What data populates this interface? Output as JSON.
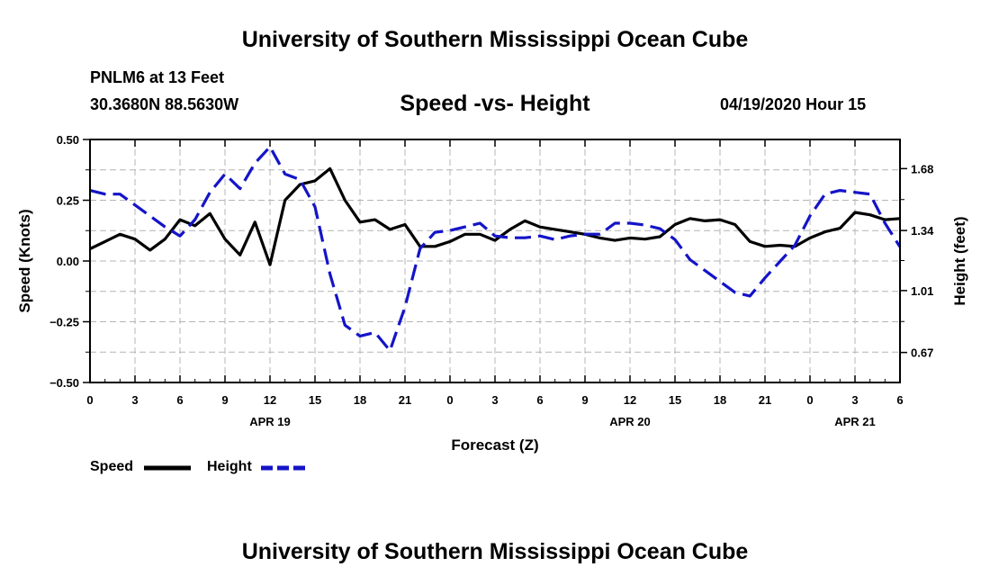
{
  "page": {
    "title_top": "University of Southern Mississippi Ocean Cube",
    "title_bottom": "University of Southern Mississippi Ocean Cube",
    "station": "PNLM6 at 13 Feet",
    "coords": "30.3680N 88.5630W",
    "date_hour": "04/19/2020 Hour 15"
  },
  "legend": {
    "speed_label": "Speed",
    "height_label": "Height"
  },
  "colors": {
    "speed": "#000000",
    "height": "#1414c8",
    "grid": "#b4b4b4"
  },
  "chart_data": {
    "type": "line",
    "title": "Speed -vs- Height",
    "xlabel": "Forecast (Z)",
    "ylabel_left": "Speed (Knots)",
    "ylabel_right": "Height (feet)",
    "xlim": [
      0,
      54
    ],
    "x_ticks": [
      0,
      3,
      6,
      9,
      12,
      15,
      18,
      21,
      24,
      27,
      30,
      33,
      36,
      39,
      42,
      45,
      48,
      51,
      54
    ],
    "x_tick_labels": [
      "0",
      "3",
      "6",
      "9",
      "12",
      "15",
      "18",
      "21",
      "0",
      "3",
      "6",
      "9",
      "12",
      "15",
      "18",
      "21",
      "0",
      "3",
      "6"
    ],
    "day_labels": [
      {
        "x": 12,
        "label": "APR 19"
      },
      {
        "x": 36,
        "label": "APR 20"
      },
      {
        "x": 51,
        "label": "APR 21"
      }
    ],
    "y_left_lim": [
      -0.5,
      0.5
    ],
    "y_left_ticks": [
      -0.5,
      -0.25,
      0.0,
      0.25,
      0.5
    ],
    "y_left_tick_labels": [
      "−0.50",
      "−0.25",
      "0.00",
      "0.25",
      "0.50"
    ],
    "y_right_lim": [
      0.505,
      1.84
    ],
    "y_right_ticks": [
      0.67,
      1.01,
      1.34,
      1.68
    ],
    "y_right_tick_labels": [
      "0.67",
      "1.01",
      "1.34",
      "1.68"
    ],
    "grid": true,
    "series": [
      {
        "name": "Speed",
        "axis": "left",
        "style": "solid",
        "x": [
          0,
          1,
          2,
          3,
          4,
          5,
          6,
          7,
          8,
          9,
          10,
          11,
          12,
          13,
          14,
          15,
          16,
          17,
          18,
          19,
          20,
          21,
          22,
          23,
          24,
          25,
          26,
          27,
          28,
          29,
          30,
          31,
          32,
          33,
          34,
          35,
          36,
          37,
          38,
          39,
          40,
          41,
          42,
          43,
          44,
          45,
          46,
          47,
          48,
          49,
          50,
          51,
          52,
          53,
          54
        ],
        "values": [
          0.05,
          0.08,
          0.11,
          0.09,
          0.045,
          0.09,
          0.17,
          0.145,
          0.195,
          0.09,
          0.025,
          0.16,
          -0.015,
          0.25,
          0.315,
          0.33,
          0.38,
          0.25,
          0.16,
          0.17,
          0.13,
          0.15,
          0.06,
          0.06,
          0.08,
          0.11,
          0.11,
          0.085,
          0.13,
          0.165,
          0.14,
          0.13,
          0.12,
          0.11,
          0.095,
          0.085,
          0.095,
          0.09,
          0.1,
          0.15,
          0.175,
          0.165,
          0.17,
          0.15,
          0.08,
          0.06,
          0.065,
          0.06,
          0.095,
          0.12,
          0.135,
          0.2,
          0.19,
          0.17,
          0.175
        ]
      },
      {
        "name": "Height",
        "axis": "right",
        "style": "dashed",
        "x": [
          0,
          1,
          2,
          3,
          4,
          5,
          6,
          7,
          8,
          9,
          10,
          11,
          12,
          13,
          14,
          15,
          16,
          17,
          18,
          19,
          20,
          21,
          22,
          23,
          24,
          25,
          26,
          27,
          28,
          29,
          30,
          31,
          32,
          33,
          34,
          35,
          36,
          37,
          38,
          39,
          40,
          41,
          42,
          43,
          44,
          45,
          46,
          47,
          48,
          49,
          50,
          51,
          52,
          53,
          54
        ],
        "values": [
          1.56,
          1.54,
          1.54,
          1.48,
          1.42,
          1.36,
          1.31,
          1.4,
          1.55,
          1.65,
          1.57,
          1.71,
          1.8,
          1.65,
          1.62,
          1.47,
          1.1,
          0.82,
          0.76,
          0.78,
          0.68,
          0.92,
          1.24,
          1.33,
          1.34,
          1.36,
          1.38,
          1.31,
          1.3,
          1.3,
          1.31,
          1.29,
          1.31,
          1.32,
          1.32,
          1.38,
          1.38,
          1.37,
          1.35,
          1.29,
          1.18,
          1.12,
          1.06,
          1.0,
          0.98,
          1.08,
          1.17,
          1.26,
          1.42,
          1.54,
          1.56,
          1.55,
          1.54,
          1.38,
          1.25
        ]
      }
    ]
  }
}
